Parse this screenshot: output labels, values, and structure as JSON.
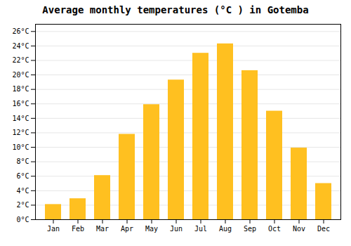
{
  "chart_data": {
    "type": "bar",
    "title": "Average monthly temperatures (°C ) in Gotemba",
    "categories": [
      "Jan",
      "Feb",
      "Mar",
      "Apr",
      "May",
      "Jun",
      "Jul",
      "Aug",
      "Sep",
      "Oct",
      "Nov",
      "Dec"
    ],
    "values": [
      2.1,
      2.9,
      6.1,
      11.8,
      15.9,
      19.3,
      23.0,
      24.3,
      20.6,
      15.0,
      9.9,
      5.0
    ],
    "color": "#FFC020",
    "ylim": [
      0,
      27
    ],
    "yticks": [
      {
        "value": 0,
        "label": "0°C"
      },
      {
        "value": 2,
        "label": "2°C"
      },
      {
        "value": 4,
        "label": "4°C"
      },
      {
        "value": 6,
        "label": "6°C"
      },
      {
        "value": 8,
        "label": "8°C"
      },
      {
        "value": 10,
        "label": "10°C"
      },
      {
        "value": 12,
        "label": "12°C"
      },
      {
        "value": 14,
        "label": "14°C"
      },
      {
        "value": 16,
        "label": "16°C"
      },
      {
        "value": 18,
        "label": "18°C"
      },
      {
        "value": 20,
        "label": "20°C"
      },
      {
        "value": 22,
        "label": "22°C"
      },
      {
        "value": 24,
        "label": "24°C"
      },
      {
        "value": 26,
        "label": "26°C"
      }
    ],
    "grid": true
  }
}
